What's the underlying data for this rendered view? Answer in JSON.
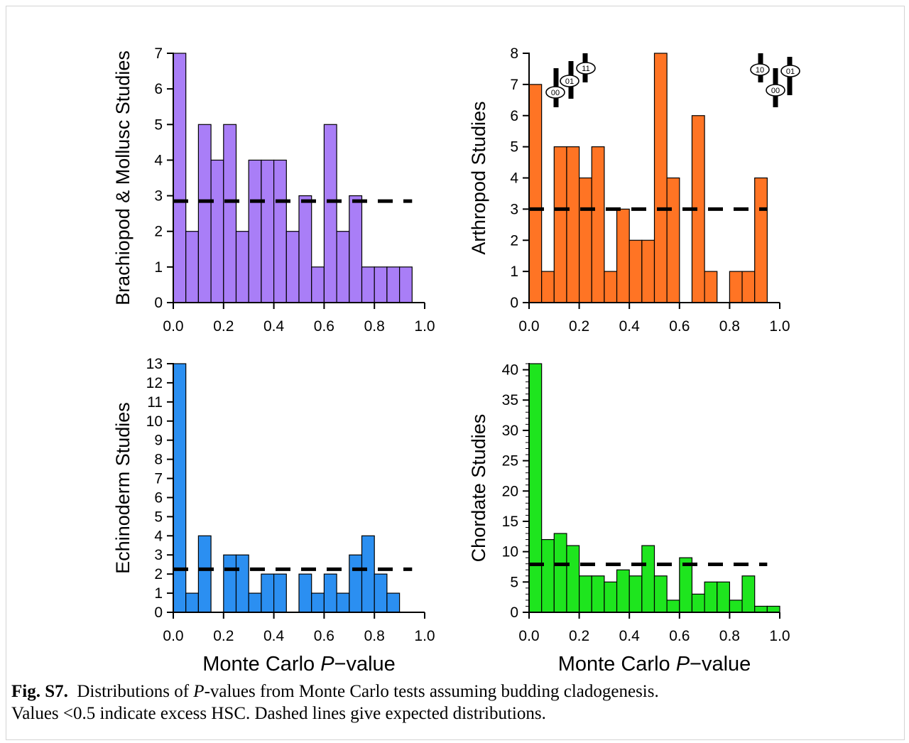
{
  "caption": {
    "label": "Fig. S7.",
    "text_before": "Distributions of ",
    "text_italic": "P",
    "text_after": "-values from Monte Carlo tests assuming budding cladogenesis.",
    "line2": "Values <0.5 indicate excess HSC.  Dashed lines give expected distributions."
  },
  "tree_labels": {
    "left": [
      "00",
      "01",
      "11"
    ],
    "right": [
      "10",
      "00",
      "01"
    ]
  },
  "chart_data": [
    {
      "type": "bar",
      "panel": "top-left",
      "ylabel": "Brachiopod & Mollusc Studies",
      "xlabel": "",
      "color": "#a97ef7",
      "bin_width": 0.05,
      "x": [
        0.0,
        0.05,
        0.1,
        0.15,
        0.2,
        0.25,
        0.3,
        0.35,
        0.4,
        0.45,
        0.5,
        0.55,
        0.6,
        0.65,
        0.7,
        0.75,
        0.8,
        0.85,
        0.9
      ],
      "values": [
        7,
        2,
        5,
        4,
        5,
        2,
        4,
        4,
        4,
        2,
        3,
        1,
        5,
        2,
        3,
        1,
        1,
        1,
        1
      ],
      "expected": 2.85,
      "xlim": [
        0,
        1
      ],
      "ylim": [
        0,
        7
      ],
      "xticks": [
        "0.0",
        "0.2",
        "0.4",
        "0.6",
        "0.8",
        "1.0"
      ],
      "yticks": [
        "0",
        "1",
        "2",
        "3",
        "4",
        "5",
        "6",
        "7"
      ]
    },
    {
      "type": "bar",
      "panel": "top-right",
      "ylabel": "Arthropod Studies",
      "xlabel": "",
      "color": "#ff7424",
      "bin_width": 0.05,
      "x": [
        0.0,
        0.05,
        0.1,
        0.15,
        0.2,
        0.25,
        0.3,
        0.35,
        0.4,
        0.45,
        0.5,
        0.55,
        0.6,
        0.65,
        0.7,
        0.75,
        0.8,
        0.85,
        0.9
      ],
      "values": [
        7,
        1,
        5,
        5,
        4,
        5,
        1,
        3,
        2,
        2,
        8,
        4,
        0,
        6,
        1,
        0,
        1,
        1,
        4
      ],
      "expected": 3.0,
      "xlim": [
        0,
        1
      ],
      "ylim": [
        0,
        8
      ],
      "xticks": [
        "0.0",
        "0.2",
        "0.4",
        "0.6",
        "0.8",
        "1.0"
      ],
      "yticks": [
        "0",
        "1",
        "2",
        "3",
        "4",
        "5",
        "6",
        "7",
        "8"
      ]
    },
    {
      "type": "bar",
      "panel": "bottom-left",
      "ylabel": "Echinoderm Studies",
      "xlabel": "Monte Carlo P−value",
      "color": "#2b8ff1",
      "bin_width": 0.05,
      "x": [
        0.0,
        0.05,
        0.1,
        0.15,
        0.2,
        0.25,
        0.3,
        0.35,
        0.4,
        0.45,
        0.5,
        0.55,
        0.6,
        0.65,
        0.7,
        0.75,
        0.8,
        0.85
      ],
      "values": [
        13,
        1,
        4,
        0,
        3,
        3,
        1,
        2,
        2,
        0,
        2,
        1,
        2,
        1,
        3,
        4,
        2,
        1
      ],
      "expected": 2.25,
      "xlim": [
        0,
        1
      ],
      "ylim": [
        0,
        13
      ],
      "xticks": [
        "0.0",
        "0.2",
        "0.4",
        "0.6",
        "0.8",
        "1.0"
      ],
      "yticks": [
        "0",
        "1",
        "2",
        "3",
        "4",
        "5",
        "6",
        "7",
        "8",
        "9",
        "10",
        "11",
        "12",
        "13"
      ]
    },
    {
      "type": "bar",
      "panel": "bottom-right",
      "ylabel": "Chordate Studies",
      "xlabel": "Monte Carlo P−value",
      "color": "#1ee51e",
      "bin_width": 0.05,
      "x": [
        0.0,
        0.05,
        0.1,
        0.15,
        0.2,
        0.25,
        0.3,
        0.35,
        0.4,
        0.45,
        0.5,
        0.55,
        0.6,
        0.65,
        0.7,
        0.75,
        0.8,
        0.85,
        0.9,
        0.95
      ],
      "values": [
        41,
        12,
        13,
        11,
        6,
        6,
        5,
        7,
        6,
        11,
        6,
        2,
        9,
        3,
        5,
        5,
        2,
        6,
        1,
        1
      ],
      "expected": 7.9,
      "xlim": [
        0,
        1
      ],
      "ylim": [
        0,
        41
      ],
      "xticks": [
        "0.0",
        "0.2",
        "0.4",
        "0.6",
        "0.8",
        "1.0"
      ],
      "yticks": [
        "0",
        "5",
        "10",
        "15",
        "20",
        "25",
        "30",
        "35",
        "40"
      ],
      "ytick_values": [
        0,
        5,
        10,
        15,
        20,
        25,
        30,
        35,
        40
      ],
      "minor_step": 1
    }
  ]
}
